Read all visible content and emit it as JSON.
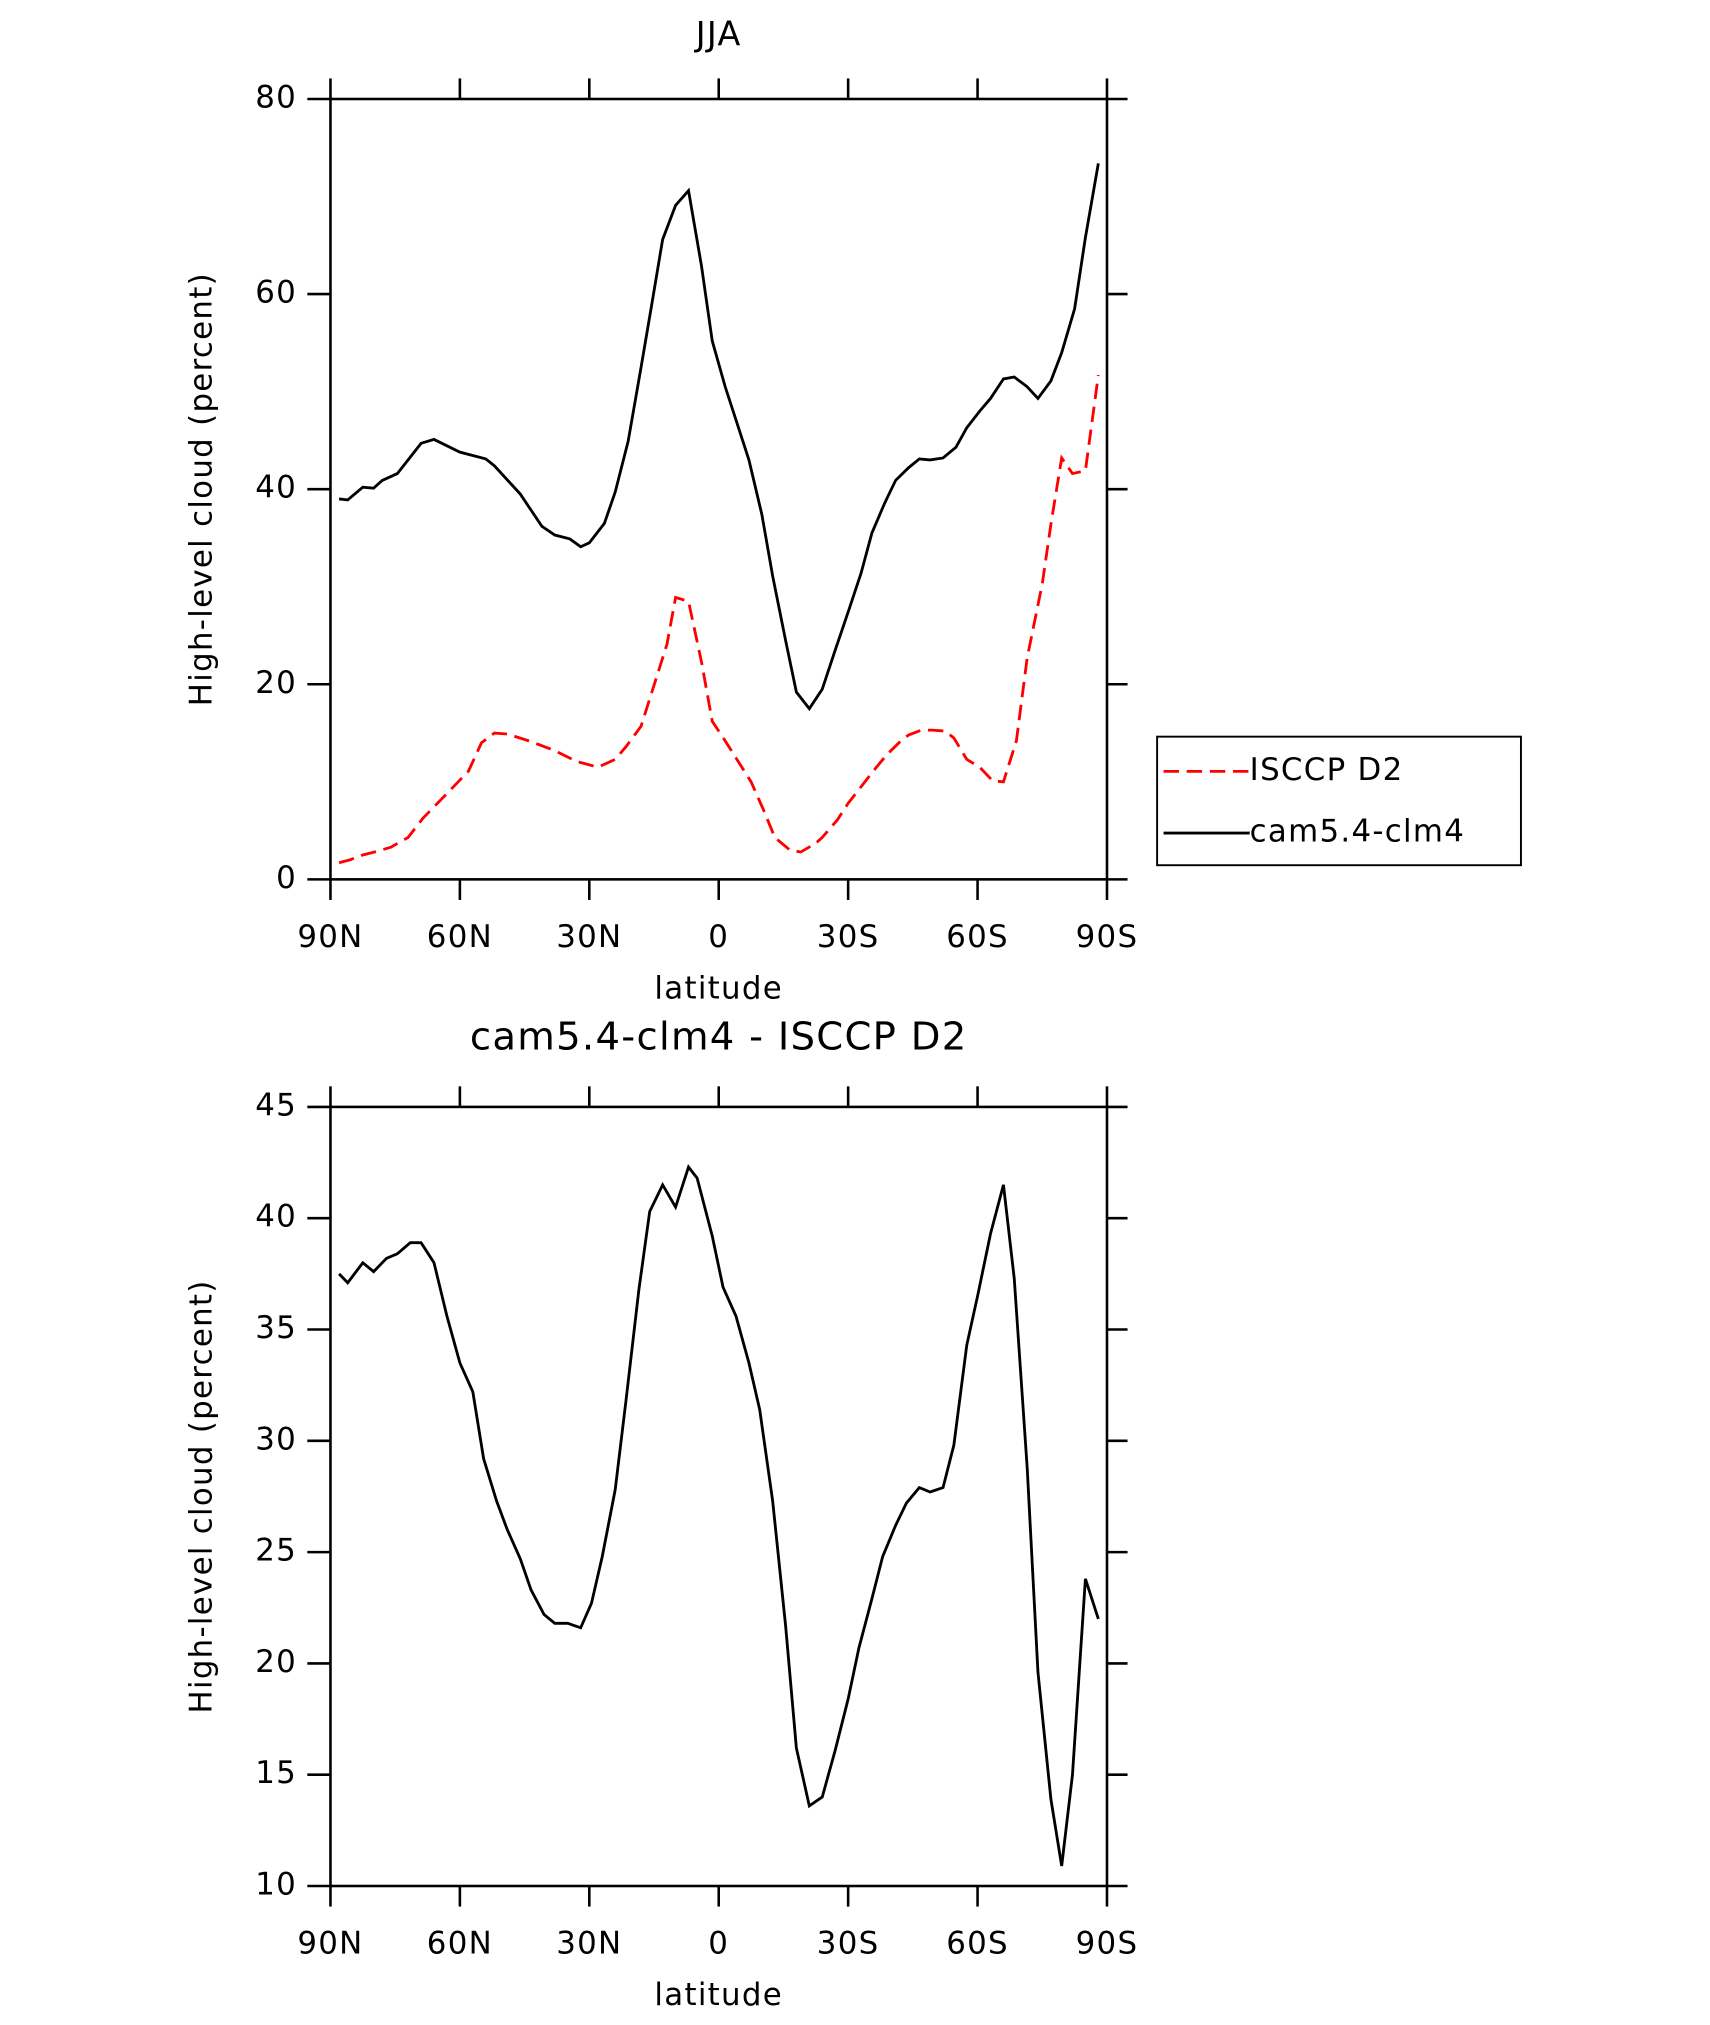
{
  "chart_data": [
    {
      "type": "line",
      "title": "JJA",
      "x_label": "latitude",
      "y_label": "High-level cloud (percent)",
      "x": [
        88,
        86,
        82.5,
        80,
        78,
        74.5,
        72,
        69,
        66,
        60,
        54,
        52,
        46,
        41,
        38,
        34.5,
        32,
        30,
        26.5,
        24,
        21,
        18,
        15.5,
        13,
        10,
        7,
        4,
        1.5,
        -1.5,
        -4,
        -7,
        -10,
        -12.5,
        -15.5,
        -18,
        -21,
        -24,
        -27,
        -30,
        -33,
        -35.5,
        -38.5,
        -41,
        -44,
        -46.5,
        -49,
        -52,
        -55,
        -57.5,
        -60.5,
        -63,
        -66,
        -68.5,
        -71.5,
        -74,
        -77,
        -79.5,
        -82.5,
        -85,
        -88
      ],
      "series": [
        {
          "name": "ISCCP D2",
          "color": "#ff0000",
          "style": "dashed",
          "x": [
            88,
            85.5,
            82.5,
            79,
            76,
            72,
            68.5,
            63,
            58,
            55,
            52,
            49,
            44,
            38,
            33,
            28,
            24,
            21.5,
            18,
            15.5,
            12,
            10,
            7,
            4,
            1.5,
            -1.5,
            -4.5,
            -7.5,
            -10.5,
            -13,
            -16.5,
            -19,
            -22.5,
            -24,
            -27.5,
            -30,
            -33,
            -36,
            -39,
            -42,
            -44,
            -47,
            -49.5,
            -52.5,
            -54.5,
            -57.5,
            -60.5,
            -63.5,
            -66,
            -69,
            -71.5,
            -75,
            -77,
            -79.5,
            -82,
            -85,
            -88
          ],
          "values": [
            1.7,
            2.0,
            2.5,
            2.9,
            3.3,
            4.3,
            6.3,
            8.8,
            11.1,
            14.0,
            15.0,
            14.9,
            14.2,
            13.2,
            12.1,
            11.5,
            12.3,
            13.6,
            15.7,
            19.2,
            24.1,
            28.9,
            28.5,
            22.3,
            16.2,
            14.2,
            12.1,
            10.0,
            7.0,
            4.3,
            3.0,
            2.8,
            3.7,
            4.3,
            6.1,
            7.8,
            9.5,
            11.2,
            12.8,
            14.1,
            14.8,
            15.3,
            15.3,
            15.2,
            14.5,
            12.3,
            11.5,
            10.1,
            10.0,
            14.2,
            22.7,
            30.3,
            36.4,
            43.2,
            41.6,
            41.9,
            51.7
          ]
        },
        {
          "name": "cam5.4-clm4",
          "color": "#000000",
          "style": "solid",
          "values": [
            39.0,
            38.9,
            40.2,
            40.1,
            40.9,
            41.6,
            43.0,
            44.7,
            45.1,
            43.8,
            43.1,
            42.4,
            39.5,
            36.2,
            35.3,
            34.9,
            34.1,
            34.5,
            36.5,
            39.7,
            44.9,
            52.5,
            59.0,
            65.6,
            69.1,
            70.6,
            62.9,
            55.2,
            50.5,
            47.1,
            43.0,
            37.4,
            31.1,
            24.5,
            19.2,
            17.5,
            19.5,
            23.5,
            27.4,
            31.4,
            35.5,
            38.6,
            40.9,
            42.2,
            43.1,
            43.0,
            43.2,
            44.3,
            46.3,
            48.0,
            49.3,
            51.3,
            51.5,
            50.5,
            49.3,
            51.1,
            54.0,
            58.5,
            65.8,
            73.4
          ]
        }
      ],
      "xlim": [
        90,
        -90
      ],
      "xticks": [
        {
          "value": 90,
          "label": "90N"
        },
        {
          "value": 60,
          "label": "60N"
        },
        {
          "value": 30,
          "label": "30N"
        },
        0,
        {
          "value": -30,
          "label": "30S"
        },
        {
          "value": -60,
          "label": "60S"
        },
        {
          "value": -90,
          "label": "90S"
        }
      ],
      "ylim": [
        0,
        80
      ],
      "yticks": [
        0,
        20,
        40,
        60,
        80
      ],
      "legend": "right"
    },
    {
      "type": "line",
      "title": "cam5.4-clm4 - ISCCP D2",
      "x_label": "latitude",
      "y_label": "High-level cloud (percent)",
      "x": [
        88,
        86,
        82.5,
        80,
        77,
        74.5,
        71.5,
        69,
        66,
        63,
        60,
        57,
        54.5,
        51.5,
        49,
        46,
        43.5,
        40.5,
        38,
        35,
        32,
        29.5,
        27,
        24,
        21.5,
        18.5,
        16,
        13,
        10,
        7,
        5,
        1.5,
        -1,
        -4,
        -7,
        -9.5,
        -12.5,
        -15.5,
        -18,
        -21,
        -24,
        -27,
        -30,
        -32.5,
        -35.5,
        -38,
        -41,
        -43.5,
        -46.5,
        -49,
        -52,
        -54.5,
        -57.5,
        -60,
        -63,
        -66,
        -68.5,
        -71.5,
        -74,
        -77,
        -79.5,
        -82,
        -85,
        -88
      ],
      "series": [
        {
          "color": "#000000",
          "style": "solid",
          "values": [
            37.5,
            37.1,
            38.0,
            37.6,
            38.2,
            38.4,
            38.9,
            38.9,
            38.0,
            35.6,
            33.5,
            32.2,
            29.2,
            27.3,
            26.0,
            24.7,
            23.3,
            22.2,
            21.8,
            21.8,
            21.6,
            22.7,
            24.8,
            27.8,
            31.8,
            36.8,
            40.3,
            41.5,
            40.5,
            42.3,
            41.8,
            39.2,
            36.9,
            35.6,
            33.5,
            31.4,
            27.3,
            21.7,
            16.2,
            13.6,
            14.0,
            16.1,
            18.4,
            20.7,
            22.9,
            24.8,
            26.2,
            27.2,
            27.9,
            27.7,
            27.9,
            29.8,
            34.3,
            36.5,
            39.3,
            41.5,
            37.3,
            28.8,
            19.6,
            13.9,
            10.9,
            15.0,
            23.8,
            22.0
          ]
        }
      ],
      "xlim": [
        90,
        -90
      ],
      "xticks": [
        {
          "value": 90,
          "label": "90N"
        },
        {
          "value": 60,
          "label": "60N"
        },
        {
          "value": 30,
          "label": "30N"
        },
        0,
        {
          "value": -30,
          "label": "30S"
        },
        {
          "value": -60,
          "label": "60S"
        },
        {
          "value": -90,
          "label": "90S"
        }
      ],
      "ylim": [
        10,
        45
      ],
      "yticks": [
        10,
        15,
        20,
        25,
        30,
        35,
        40,
        45
      ]
    }
  ]
}
